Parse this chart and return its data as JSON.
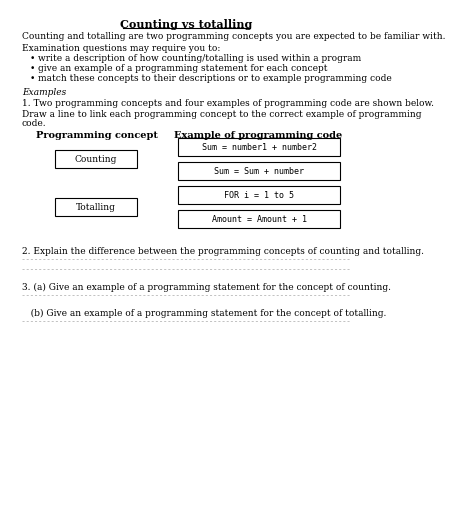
{
  "title": "Counting vs totalling",
  "bg_color": "#ffffff",
  "text_color": "#000000",
  "intro_line1": "Counting and totalling are two programming concepts you are expected to be familiar with.",
  "intro_line2": "Examination questions may require you to:",
  "bullets": [
    "write a description of how counting/totalling is used within a program",
    "give an example of a programming statement for each concept",
    "match these concepts to their descriptions or to example programming code"
  ],
  "examples_label": "Examples",
  "q1_text": "1. Two programming concepts and four examples of programming code are shown below.",
  "q1_instruct_1": "Draw a line to link each programming concept to the correct example of programming",
  "q1_instruct_2": "code.",
  "col_left": "Programming concept",
  "col_right": "Example of programming code",
  "concepts": [
    "Counting",
    "Totalling"
  ],
  "code_examples": [
    "Sum = number1 + number2",
    "Sum = Sum + number",
    "FOR i = 1 to 5",
    "Amount = Amount + 1"
  ],
  "q2_text": "2. Explain the difference between the programming concepts of counting and totalling.",
  "q3a_text": "3. (a) Give an example of a programming statement for the concept of counting.",
  "q3b_text": "   (b) Give an example of a programming statement for the concept of totalling."
}
